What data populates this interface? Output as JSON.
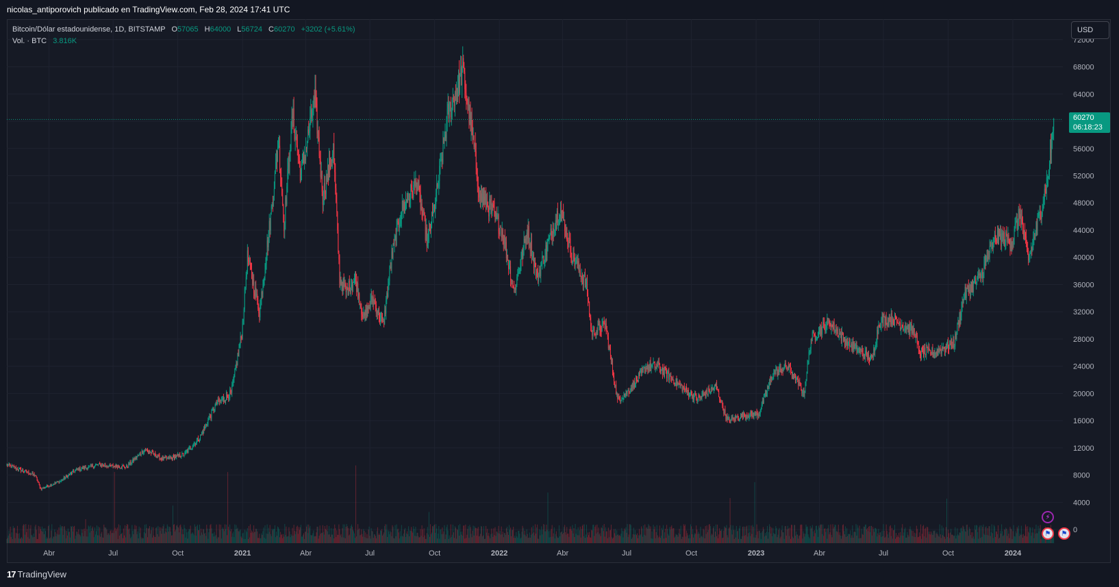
{
  "header": {
    "publisher_line": "nicolas_antiporovich publicado en TradingView.com, Feb 28, 2024 17:41 UTC"
  },
  "legend": {
    "symbol": "Bitcoin/Dólar estadounidense, 1D, BITSTAMP",
    "open_label": "O",
    "open_value": "57065",
    "high_label": "H",
    "high_value": "64000",
    "low_label": "L",
    "low_value": "56724",
    "close_label": "C",
    "close_value": "60270",
    "change": "+3202 (+5.61%)",
    "volume_label": "Vol. · BTC",
    "volume_value": "3.816K"
  },
  "currency_button": "USD",
  "last_price_tag": {
    "price": "60270",
    "countdown": "06:18:23"
  },
  "brand": {
    "logo": "17",
    "name": "TradingView"
  },
  "colors": {
    "up": "#089981",
    "down": "#f23645",
    "background": "#161a25",
    "grid": "#1f2330"
  },
  "icons": [
    "lightning-event-icon",
    "us-flag-event-icon"
  ],
  "chart_data": {
    "type": "candlestick",
    "title": "Bitcoin/Dólar estadounidense, 1D, BITSTAMP",
    "ylim": [
      -2000,
      75000
    ],
    "y_ticks": [
      72000,
      68000,
      64000,
      60000,
      56000,
      52000,
      48000,
      44000,
      40000,
      36000,
      32000,
      28000,
      24000,
      20000,
      16000,
      12000,
      8000,
      4000,
      0
    ],
    "x_tick_labels": [
      "Abr",
      "Jul",
      "Oct",
      "2021",
      "Abr",
      "Jul",
      "Oct",
      "2022",
      "Abr",
      "Jul",
      "Oct",
      "2023",
      "Abr",
      "Jul",
      "Oct",
      "2024"
    ],
    "grid": true,
    "last_price": 60270,
    "series": [
      {
        "name": "price",
        "x": [
          "2020-02-01",
          "2020-03-12",
          "2020-03-20",
          "2020-04-15",
          "2020-05-10",
          "2020-06-10",
          "2020-07-20",
          "2020-08-15",
          "2020-09-10",
          "2020-10-10",
          "2020-11-01",
          "2020-11-25",
          "2020-12-16",
          "2020-12-31",
          "2021-01-08",
          "2021-01-25",
          "2021-02-10",
          "2021-02-21",
          "2021-03-01",
          "2021-03-13",
          "2021-03-25",
          "2021-04-14",
          "2021-04-25",
          "2021-05-10",
          "2021-05-19",
          "2021-05-28",
          "2021-06-10",
          "2021-06-22",
          "2021-07-05",
          "2021-07-20",
          "2021-08-01",
          "2021-08-15",
          "2021-09-06",
          "2021-09-21",
          "2021-10-05",
          "2021-10-20",
          "2021-11-10",
          "2021-11-25",
          "2021-12-04",
          "2021-12-20",
          "2022-01-05",
          "2022-01-22",
          "2022-02-10",
          "2022-02-24",
          "2022-03-28",
          "2022-04-15",
          "2022-05-05",
          "2022-05-12",
          "2022-06-01",
          "2022-06-18",
          "2022-07-05",
          "2022-07-30",
          "2022-08-15",
          "2022-09-10",
          "2022-10-10",
          "2022-11-05",
          "2022-11-21",
          "2022-12-15",
          "2023-01-05",
          "2023-01-25",
          "2023-02-15",
          "2023-03-10",
          "2023-03-20",
          "2023-04-14",
          "2023-05-10",
          "2023-06-15",
          "2023-06-25",
          "2023-07-13",
          "2023-08-15",
          "2023-08-20",
          "2023-09-11",
          "2023-10-10",
          "2023-10-24",
          "2023-11-15",
          "2023-12-08",
          "2023-12-31",
          "2024-01-11",
          "2024-01-23",
          "2024-02-10",
          "2024-02-20",
          "2024-02-28"
        ],
        "values": [
          9500,
          8000,
          6000,
          7000,
          8800,
          9500,
          9200,
          11800,
          10300,
          11000,
          13500,
          18500,
          20000,
          28900,
          40000,
          32000,
          46000,
          57000,
          45000,
          61000,
          52000,
          63500,
          49000,
          56000,
          37000,
          35000,
          37000,
          31000,
          34000,
          30000,
          40000,
          47000,
          51000,
          42000,
          50000,
          61000,
          67500,
          57000,
          49000,
          47000,
          44000,
          35000,
          44000,
          37000,
          47500,
          40000,
          36000,
          29000,
          30000,
          19000,
          20500,
          24000,
          24000,
          21500,
          19200,
          21000,
          16000,
          16800,
          17000,
          23000,
          24000,
          20000,
          28000,
          30500,
          27500,
          25000,
          30500,
          31000,
          29000,
          26000,
          26000,
          27500,
          34500,
          37000,
          43000,
          42500,
          46500,
          39500,
          47000,
          52000,
          60270
        ]
      }
    ]
  }
}
